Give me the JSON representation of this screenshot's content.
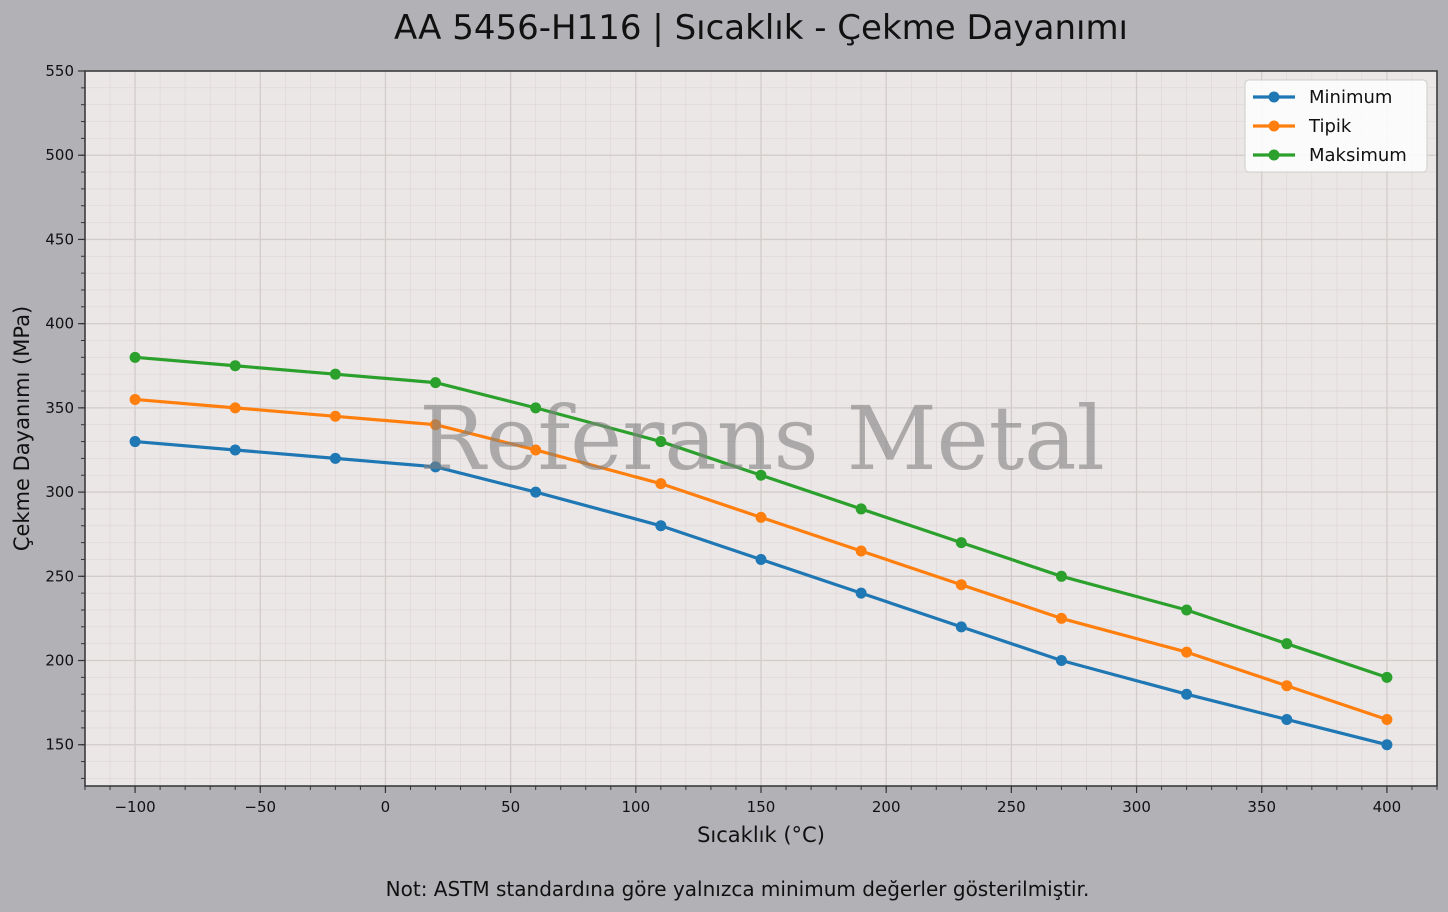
{
  "title": "AA 5456-H116 | Sıcaklık - Çekme Dayanımı",
  "note": "Not: ASTM standardına göre yalnızca minimum değerler gösterilmiştir.",
  "watermark": "Referans Metal",
  "chart_data": {
    "type": "line",
    "title": "AA 5456-H116 | Sıcaklık - Çekme Dayanımı",
    "xlabel": "Sıcaklık (°C)",
    "ylabel": "Çekme Dayanımı (MPa)",
    "xlim": [
      -120,
      420
    ],
    "ylim": [
      125.5,
      550
    ],
    "xticks": [
      -100,
      -50,
      0,
      50,
      100,
      150,
      200,
      250,
      300,
      350,
      400
    ],
    "xtick_labels": [
      "−100",
      "−50",
      "0",
      "50",
      "100",
      "150",
      "200",
      "250",
      "300",
      "350",
      "400"
    ],
    "yticks": [
      150,
      200,
      250,
      300,
      350,
      400,
      450,
      500,
      550
    ],
    "ytick_labels": [
      "150",
      "200",
      "250",
      "300",
      "350",
      "400",
      "450",
      "500",
      "550"
    ],
    "grid": true,
    "minor_grid": true,
    "legend_position": "top-right",
    "x": [
      -100,
      -60,
      -20,
      20,
      60,
      110,
      150,
      190,
      230,
      270,
      320,
      360,
      400
    ],
    "series": [
      {
        "name": "Minimum",
        "color": "#1f77b4",
        "values": [
          330,
          325,
          320,
          315,
          300,
          280,
          260,
          240,
          220,
          200,
          180,
          165,
          150
        ]
      },
      {
        "name": "Tipik",
        "color": "#ff7f0e",
        "values": [
          355,
          350,
          345,
          340,
          325,
          305,
          285,
          265,
          245,
          225,
          205,
          185,
          165
        ]
      },
      {
        "name": "Maksimum",
        "color": "#2ca02c",
        "values": [
          380,
          375,
          370,
          365,
          350,
          330,
          310,
          290,
          270,
          250,
          230,
          210,
          190
        ]
      }
    ]
  }
}
